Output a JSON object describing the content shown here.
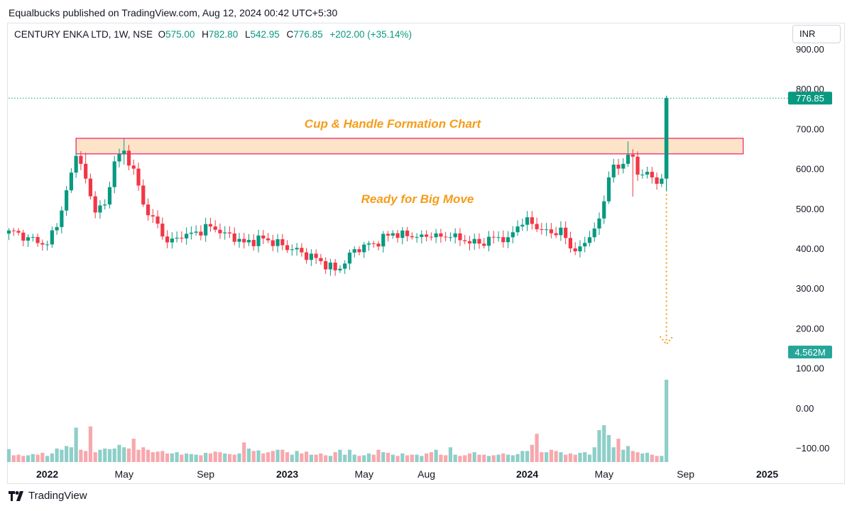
{
  "publisher_line": "Equalbucks published on TradingView.com, Aug 12, 2024 00:42 UTC+5:30",
  "legend": {
    "symbol": "CENTURY ENKA LTD, 1W, NSE",
    "open_label": "O",
    "open": "575.00",
    "high_label": "H",
    "high": "782.80",
    "low_label": "L",
    "low": "542.95",
    "close_label": "C",
    "close": "776.85",
    "change": "+202.00 (+35.14%)"
  },
  "currency": "INR",
  "footer": {
    "brand": "TradingView"
  },
  "chart_data": {
    "type": "candlestick",
    "title": "Cup & Handle Formation Chart",
    "annotation": "Ready for Big Move",
    "price_axis": {
      "range": [
        -140,
        930
      ],
      "ticks": [
        "900.00",
        "800.00",
        "700.00",
        "600.00",
        "500.00",
        "400.00",
        "300.00",
        "200.00",
        "100.00",
        "0.00",
        "−100.00"
      ],
      "tick_values": [
        900,
        800,
        700,
        600,
        500,
        400,
        300,
        200,
        100,
        0,
        -100
      ]
    },
    "time_axis": {
      "labels": [
        {
          "text": "2022",
          "bold": true,
          "week": 8
        },
        {
          "text": "May",
          "bold": false,
          "week": 24
        },
        {
          "text": "Sep",
          "bold": false,
          "week": 41
        },
        {
          "text": "2023",
          "bold": true,
          "week": 58
        },
        {
          "text": "May",
          "bold": false,
          "week": 74
        },
        {
          "text": "Aug",
          "bold": false,
          "week": 87
        },
        {
          "text": "2024",
          "bold": true,
          "week": 108
        },
        {
          "text": "May",
          "bold": false,
          "week": 124
        },
        {
          "text": "Sep",
          "bold": false,
          "week": 141
        },
        {
          "text": "2025",
          "bold": true,
          "week": 158
        }
      ]
    },
    "last_price": {
      "value": 776.85,
      "label": "776.85"
    },
    "last_volume": {
      "label": "4.562M"
    },
    "resistance_zone": {
      "from_week": 14,
      "to_week": 153,
      "low": 637,
      "high": 676
    },
    "colors": {
      "up": "#089981",
      "down": "#f23645",
      "up_vol": "#8ecfc8",
      "down_vol": "#f7a8ad",
      "zone_fill": "#fde3c8",
      "zone_border": "#e91e63",
      "annotation": "#f59c1a",
      "arrow": "#f59c1a"
    },
    "close_anchors": [
      [
        0,
        445
      ],
      [
        4,
        428
      ],
      [
        8,
        410
      ],
      [
        11,
        495
      ],
      [
        13,
        590
      ],
      [
        14,
        632
      ],
      [
        16,
        575
      ],
      [
        18,
        490
      ],
      [
        20,
        510
      ],
      [
        22,
        618
      ],
      [
        24,
        645
      ],
      [
        26,
        600
      ],
      [
        28,
        510
      ],
      [
        30,
        480
      ],
      [
        33,
        415
      ],
      [
        36,
        425
      ],
      [
        39,
        442
      ],
      [
        42,
        455
      ],
      [
        45,
        440
      ],
      [
        49,
        415
      ],
      [
        53,
        425
      ],
      [
        57,
        408
      ],
      [
        61,
        390
      ],
      [
        65,
        368
      ],
      [
        68,
        345
      ],
      [
        70,
        362
      ],
      [
        72,
        398
      ],
      [
        76,
        412
      ],
      [
        80,
        438
      ],
      [
        84,
        428
      ],
      [
        88,
        428
      ],
      [
        92,
        428
      ],
      [
        95,
        418
      ],
      [
        98,
        412
      ],
      [
        101,
        428
      ],
      [
        104,
        428
      ],
      [
        106,
        455
      ],
      [
        108,
        478
      ],
      [
        110,
        448
      ],
      [
        113,
        438
      ],
      [
        115,
        452
      ],
      [
        117,
        400
      ],
      [
        119,
        405
      ],
      [
        121,
        428
      ],
      [
        123,
        475
      ],
      [
        124,
        518
      ],
      [
        125,
        578
      ],
      [
        126,
        610
      ],
      [
        127,
        600
      ],
      [
        128,
        612
      ],
      [
        129,
        635
      ],
      [
        130,
        630
      ],
      [
        131,
        585
      ],
      [
        133,
        592
      ],
      [
        134,
        578
      ],
      [
        135,
        562
      ],
      [
        136,
        575
      ],
      [
        137,
        577
      ]
    ],
    "final_candle": {
      "open": 575.0,
      "high": 782.8,
      "low": 542.95,
      "close": 776.85
    },
    "spike_wicks": [
      [
        16,
        640,
        585
      ],
      [
        24,
        675,
        610
      ],
      [
        25,
        655,
        600
      ],
      [
        129,
        668,
        605
      ],
      [
        130,
        645,
        530
      ],
      [
        103,
        445,
        402
      ],
      [
        96,
        430,
        395
      ]
    ],
    "volumes": [
      1.05,
      0.55,
      0.6,
      0.5,
      0.55,
      0.65,
      0.6,
      0.75,
      0.5,
      0.7,
      1.1,
      1.0,
      1.3,
      1.2,
      2.8,
      1.0,
      0.9,
      2.9,
      0.8,
      1.0,
      1.1,
      1.05,
      1.1,
      1.4,
      1.2,
      1.1,
      1.9,
      1.0,
      1.2,
      1.0,
      0.8,
      0.85,
      0.9,
      0.7,
      0.7,
      0.8,
      0.6,
      0.7,
      0.65,
      0.6,
      0.55,
      0.75,
      0.7,
      0.85,
      0.8,
      0.7,
      0.65,
      0.6,
      0.7,
      1.6,
      1.1,
      0.9,
      0.95,
      0.7,
      0.8,
      0.9,
      1.0,
      1.0,
      0.8,
      0.6,
      0.9,
      0.7,
      0.85,
      0.6,
      0.6,
      0.7,
      0.55,
      0.5,
      0.8,
      1.0,
      0.6,
      1.0,
      0.6,
      0.5,
      0.55,
      0.7,
      0.6,
      1.0,
      0.8,
      0.75,
      0.6,
      0.5,
      0.7,
      0.55,
      0.6,
      0.6,
      0.5,
      0.7,
      0.8,
      1.0,
      0.6,
      0.55,
      1.2,
      0.6,
      0.5,
      0.55,
      0.7,
      0.8,
      0.6,
      0.6,
      0.5,
      0.55,
      0.6,
      0.7,
      0.6,
      0.55,
      0.65,
      0.9,
      0.9,
      1.4,
      2.3,
      0.8,
      0.8,
      1.0,
      0.9,
      0.8,
      0.6,
      0.7,
      0.6,
      0.75,
      0.8,
      0.6,
      1.2,
      2.6,
      3.0,
      2.2,
      1.2,
      1.9,
      1.0,
      1.3,
      0.9,
      0.8,
      0.7,
      0.75,
      0.6,
      0.5,
      0.5,
      6.7
    ]
  }
}
